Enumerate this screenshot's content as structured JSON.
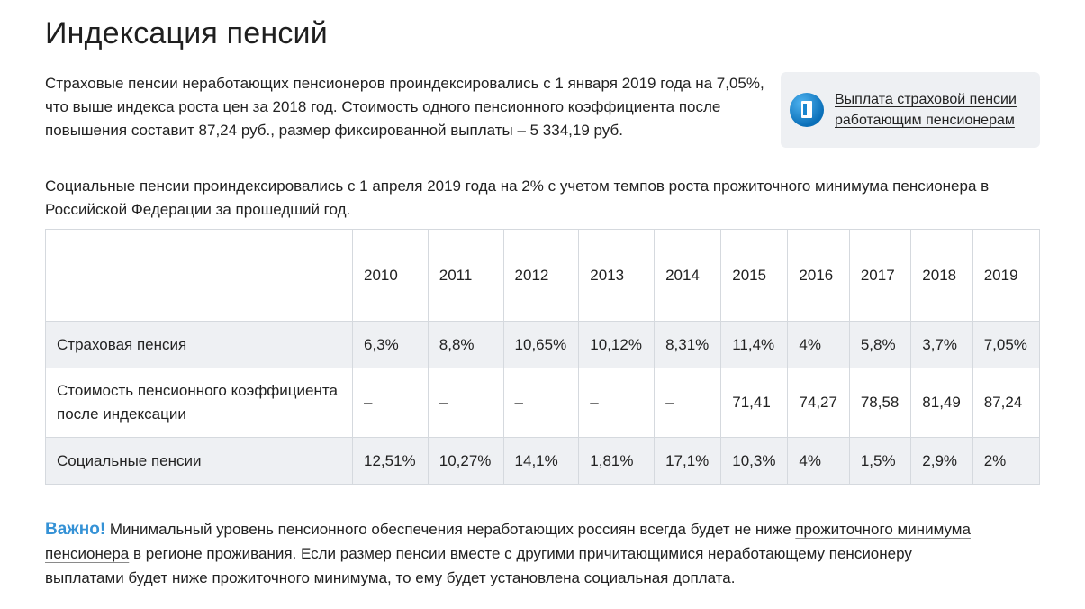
{
  "page_title": "Индексация пенсий",
  "intro": {
    "paragraph": "Страховые пенсии неработающих пенсионеров проиндексировались с 1 января 2019 года на 7,05%, что выше индекса роста цен за 2018 год. Стоимость одного пенсионного коэффициента после повышения составит 87,24 руб., размер фиксированной выплаты – 5 334,19 руб."
  },
  "side_card": {
    "icon": "door-icon",
    "link_text": "Выплата страховой пенсии работающим пенсионерам"
  },
  "social_paragraph": "Социальные пенсии проиндексировались с 1 апреля 2019 года на 2% с учетом темпов роста прожиточного минимума пенсионера в Российской Федерации за прошедший год.",
  "table": {
    "years": [
      "2010",
      "2011",
      "2012",
      "2013",
      "2014",
      "2015",
      "2016",
      "2017",
      "2018",
      "2019"
    ],
    "rows": [
      {
        "label": "Страховая пенсия",
        "values": [
          "6,3%",
          "8,8%",
          "10,65%",
          "10,12%",
          "8,31%",
          "11,4%",
          "4%",
          "5,8%",
          "3,7%",
          "7,05%"
        ]
      },
      {
        "label": "Стоимость пенсионного коэффициента после индексации",
        "values": [
          "–",
          "–",
          "–",
          "–",
          "–",
          "71,41",
          "74,27",
          "78,58",
          "81,49",
          "87,24"
        ]
      },
      {
        "label": "Социальные пенсии",
        "values": [
          "12,51%",
          "10,27%",
          "14,1%",
          "1,81%",
          "17,1%",
          "10,3%",
          "4%",
          "1,5%",
          "2,9%",
          "2%"
        ]
      }
    ]
  },
  "important": {
    "lead": "Важно!",
    "text_before": " Минимальный уровень пенсионного обеспечения неработающих россиян всегда будет не ниже ",
    "link_text": "прожиточного минимума пенсионера",
    "text_after": " в регионе проживания. Если размер пенсии вместе с другими причитающимися неработающему пенсионеру выплатами будет ниже прожиточного минимума, то ему будет установлена социальная доплата."
  },
  "colors": {
    "accent": "#3592d6",
    "row_shade": "#eef0f3",
    "border": "#d5d9de"
  }
}
